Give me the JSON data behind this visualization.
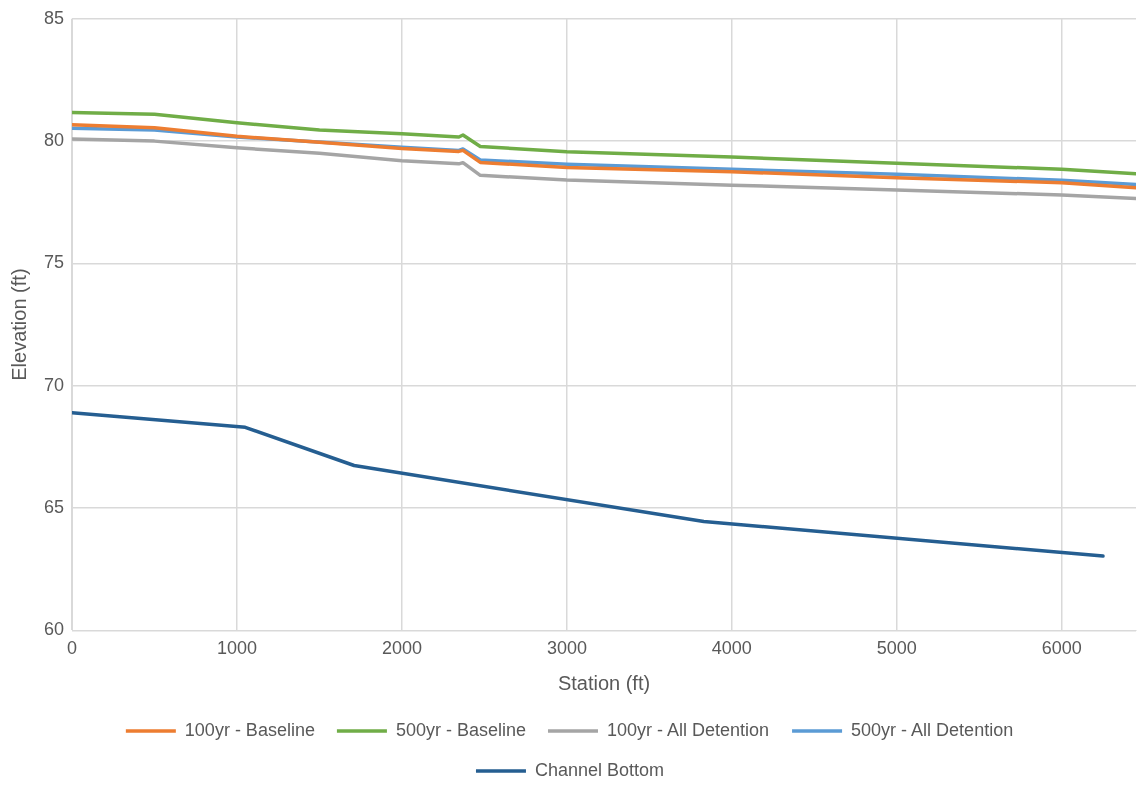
{
  "chart_data": {
    "type": "line",
    "xlabel": "Station (ft)",
    "ylabel": "Elevation (ft)",
    "xlim": [
      0,
      6450
    ],
    "xticks": [
      0,
      1000,
      2000,
      3000,
      4000,
      5000,
      6000
    ],
    "ylim": [
      60,
      85
    ],
    "yticks": [
      60,
      65,
      70,
      75,
      80,
      85
    ],
    "grid": true,
    "legend": "bottom",
    "marker": "none",
    "line_style": "solid",
    "series": [
      {
        "name": "100yr - Baseline",
        "color": "#ed7d31",
        "x": [
          0,
          500,
          1000,
          1500,
          2000,
          2345,
          2370,
          2475,
          3000,
          4000,
          5000,
          6000,
          6450
        ],
        "values": [
          80.67,
          80.55,
          80.2,
          79.95,
          79.7,
          79.58,
          79.62,
          79.13,
          78.92,
          78.75,
          78.5,
          78.3,
          78.09
        ]
      },
      {
        "name": "500yr - Baseline",
        "color": "#70ad47",
        "x": [
          0,
          500,
          1000,
          1500,
          2000,
          2345,
          2370,
          2475,
          3000,
          4000,
          5000,
          6000,
          6450
        ],
        "values": [
          81.17,
          81.1,
          80.75,
          80.45,
          80.3,
          80.17,
          80.25,
          79.78,
          79.57,
          79.35,
          79.1,
          78.85,
          78.67
        ]
      },
      {
        "name": "100yr - All Detention",
        "color": "#a5a5a5",
        "x": [
          0,
          500,
          1000,
          1500,
          2000,
          2345,
          2370,
          2475,
          3000,
          4000,
          5000,
          6000,
          6450
        ],
        "values": [
          80.09,
          80.0,
          79.73,
          79.5,
          79.2,
          79.07,
          79.12,
          78.6,
          78.41,
          78.2,
          78.0,
          77.8,
          77.65
        ]
      },
      {
        "name": "500yr - All Detention",
        "color": "#5b9bd5",
        "x": [
          0,
          500,
          1000,
          2000,
          2345,
          2370,
          2475,
          3000,
          4000,
          5000,
          6000,
          6450
        ],
        "values": [
          80.53,
          80.45,
          80.17,
          79.75,
          79.62,
          79.68,
          79.23,
          79.05,
          78.85,
          78.65,
          78.4,
          78.23
        ]
      },
      {
        "name": "Channel Bottom",
        "color": "#255e91",
        "x": [
          0,
          1050,
          1710,
          3830,
          6250
        ],
        "values": [
          68.9,
          68.3,
          66.74,
          64.45,
          63.04
        ]
      }
    ]
  }
}
